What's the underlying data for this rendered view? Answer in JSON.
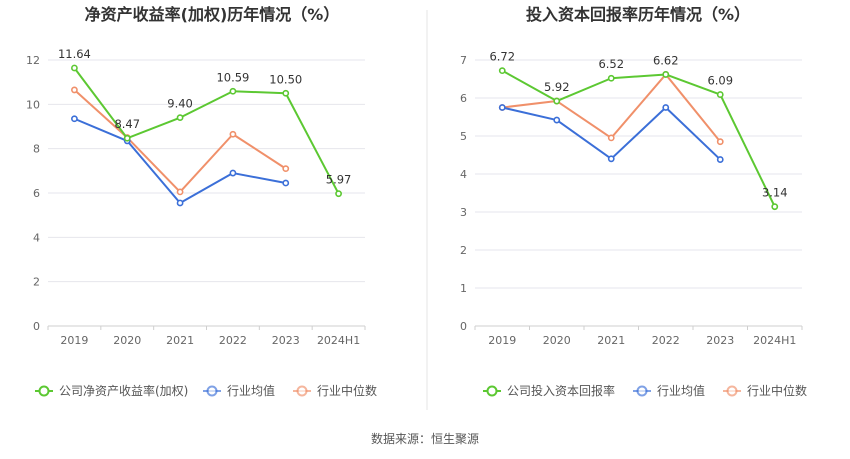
{
  "source_text": "数据来源：恒生聚源",
  "colors": {
    "company": "#5cc832",
    "avg": "#3b6fd8",
    "median": "#f0906a"
  },
  "chart_data": [
    {
      "type": "line",
      "title": "净资产收益率(加权)历年情况（%）",
      "categories": [
        "2019",
        "2020",
        "2021",
        "2022",
        "2023",
        "2024H1"
      ],
      "ylim": [
        0,
        12
      ],
      "yticks": [
        0,
        2,
        4,
        6,
        8,
        10,
        12
      ],
      "grid": true,
      "legend_position": "bottom",
      "series": [
        {
          "name": "公司净资产收益率(加权)",
          "key": "company",
          "values": [
            11.64,
            8.47,
            9.4,
            10.59,
            10.5,
            5.97
          ],
          "labels": [
            "11.64",
            "8.47",
            "9.40",
            "10.59",
            "10.50",
            "5.97"
          ]
        },
        {
          "name": "行业均值",
          "key": "avg",
          "values": [
            9.35,
            8.35,
            5.55,
            6.9,
            6.45,
            null
          ]
        },
        {
          "name": "行业中位数",
          "key": "median",
          "values": [
            10.65,
            8.5,
            6.05,
            8.65,
            7.1,
            null
          ]
        }
      ]
    },
    {
      "type": "line",
      "title": "投入资本回报率历年情况（%）",
      "categories": [
        "2019",
        "2020",
        "2021",
        "2022",
        "2023",
        "2024H1"
      ],
      "ylim": [
        0,
        7
      ],
      "yticks": [
        0,
        1,
        2,
        3,
        4,
        5,
        6,
        7
      ],
      "grid": true,
      "legend_position": "bottom",
      "series": [
        {
          "name": "公司投入资本回报率",
          "key": "company",
          "values": [
            6.72,
            5.92,
            6.52,
            6.62,
            6.09,
            3.14
          ],
          "labels": [
            "6.72",
            "5.92",
            "6.52",
            "6.62",
            "6.09",
            "3.14"
          ]
        },
        {
          "name": "行业均值",
          "key": "avg",
          "values": [
            5.75,
            5.42,
            4.4,
            5.75,
            4.38,
            null
          ]
        },
        {
          "name": "行业中位数",
          "key": "median",
          "values": [
            5.75,
            5.92,
            4.95,
            6.62,
            4.85,
            null
          ]
        }
      ]
    }
  ]
}
